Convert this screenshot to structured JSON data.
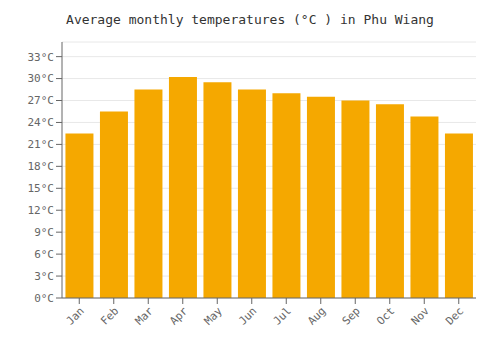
{
  "chart_data": {
    "type": "bar",
    "title": "Average monthly temperatures (°C ) in Phu Wiang",
    "categories": [
      "Jan",
      "Feb",
      "Mar",
      "Apr",
      "May",
      "Jun",
      "Jul",
      "Aug",
      "Sep",
      "Oct",
      "Nov",
      "Dec"
    ],
    "values": [
      22.5,
      25.5,
      28.5,
      30.2,
      29.5,
      28.5,
      28.0,
      27.5,
      27.0,
      26.5,
      24.8,
      22.5
    ],
    "color": "#F5A800",
    "ylim": [
      0,
      35
    ],
    "yticks": [
      {
        "value": 0,
        "label": "0°C"
      },
      {
        "value": 3,
        "label": "3°C"
      },
      {
        "value": 6,
        "label": "6°C"
      },
      {
        "value": 9,
        "label": "9°C"
      },
      {
        "value": 12,
        "label": "12°C"
      },
      {
        "value": 15,
        "label": "15°C"
      },
      {
        "value": 18,
        "label": "18°C"
      },
      {
        "value": 21,
        "label": "21°C"
      },
      {
        "value": 24,
        "label": "24°C"
      },
      {
        "value": 27,
        "label": "27°C"
      },
      {
        "value": 30,
        "label": "30°C"
      },
      {
        "value": 33,
        "label": "33°C"
      }
    ],
    "grid": true
  }
}
